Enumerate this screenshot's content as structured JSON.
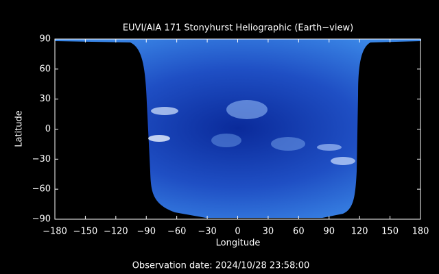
{
  "chart_data": {
    "type": "image",
    "title": "EUVI/AIA 171 Stonyhurst Heliographic (Earth−view)",
    "xlabel": "Longitude",
    "ylabel": "Latitude",
    "footer": "Observation date: 2024/10/28 23:58:00",
    "xlim": [
      -180,
      180
    ],
    "ylim": [
      -90,
      90
    ],
    "xticks": [
      {
        "value": -180,
        "label": "−180"
      },
      {
        "value": -150,
        "label": "−150"
      },
      {
        "value": -120,
        "label": "−120"
      },
      {
        "value": -90,
        "label": "−90"
      },
      {
        "value": -60,
        "label": "−60"
      },
      {
        "value": -30,
        "label": "−30"
      },
      0,
      30,
      60,
      90,
      120,
      150,
      180
    ],
    "yticks": [
      {
        "value": -90,
        "label": "−90"
      },
      {
        "value": -60,
        "label": "−60"
      },
      {
        "value": -30,
        "label": "−30"
      },
      0,
      30,
      60,
      90
    ]
  }
}
